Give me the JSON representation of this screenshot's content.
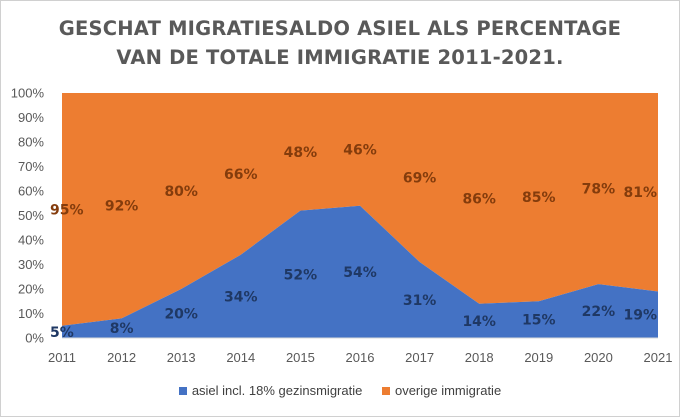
{
  "chart_data": {
    "type": "area",
    "stacked": true,
    "percent_stacked": true,
    "title_lines": [
      "GESCHAT MIGRATIESALDO ASIEL ALS PERCENTAGE",
      "VAN DE TOTALE IMMIGRATIE 2011-2021."
    ],
    "x": [
      "2011",
      "2012",
      "2013",
      "2014",
      "2015",
      "2016",
      "2017",
      "2018",
      "2019",
      "2020",
      "2021"
    ],
    "ylim": [
      0,
      100
    ],
    "y_ticks": [
      "0%",
      "10%",
      "20%",
      "30%",
      "40%",
      "50%",
      "60%",
      "70%",
      "80%",
      "90%",
      "100%"
    ],
    "grid": false,
    "legend_position": "bottom",
    "series": [
      {
        "name": "asiel incl. 18% gezinsmigratie",
        "values": [
          5,
          8,
          20,
          34,
          52,
          54,
          31,
          14,
          15,
          22,
          19
        ],
        "labels": [
          "5%",
          "8%",
          "20%",
          "34%",
          "52%",
          "54%",
          "31%",
          "14%",
          "15%",
          "22%",
          "19%"
        ],
        "color": "#4472C4",
        "label_color": "#1F3864"
      },
      {
        "name": "overige immigratie",
        "values": [
          95,
          92,
          80,
          66,
          48,
          46,
          69,
          86,
          85,
          78,
          81
        ],
        "labels": [
          "95%",
          "92%",
          "80%",
          "66%",
          "48%",
          "46%",
          "69%",
          "86%",
          "85%",
          "78%",
          "81%"
        ],
        "color": "#ED7D31",
        "label_color": "#843C0C"
      }
    ]
  }
}
